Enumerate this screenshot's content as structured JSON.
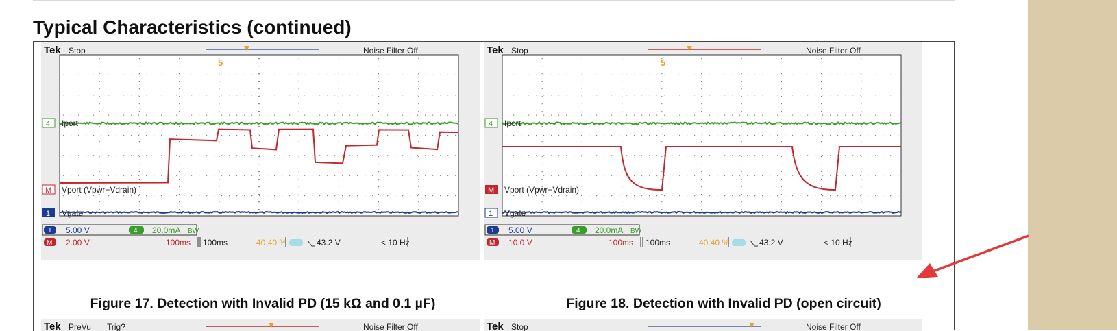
{
  "section_title": "Typical Characteristics (continued)",
  "colors": {
    "ch1": "#1e3b8f",
    "ch4": "#3a9d2c",
    "math": "#c2272d",
    "trigger": "#e8a227",
    "arrow": "#e23a3a",
    "side_panel": "#dccba8"
  },
  "figures": [
    {
      "scope": {
        "brand": "Tek",
        "state": "Stop",
        "filter": "Noise Filter Off",
        "trigger_marker": "5",
        "labels": {
          "ch4": "Iport",
          "math": "Vport (Vpwr−Vdrain)",
          "ch1": "Vgate"
        },
        "markers": {
          "ch4": "4",
          "math": "M",
          "ch1": "1"
        },
        "readout": {
          "ch1_scale": "5.00 V",
          "ch4_scale": "20.0mA",
          "bw": "BW",
          "math_scale": "2.00 V",
          "math_time": "100ms",
          "timebase": "100ms",
          "trig_pos": "40.40 %",
          "trig_level": "43.2 V",
          "freq": "< 10 Hz"
        }
      },
      "caption": "Figure 17. Detection with Invalid PD (15 kΩ and 0.1 µF)"
    },
    {
      "scope": {
        "brand": "Tek",
        "state": "Stop",
        "filter": "Noise Filter Off",
        "trigger_marker": "5",
        "labels": {
          "ch4": "Iport",
          "math": "Vport (Vpwr−Vdrain)",
          "ch1": "Vgate"
        },
        "markers": {
          "ch4": "4",
          "math": "M",
          "ch1": "1"
        },
        "readout": {
          "ch1_scale": "5.00 V",
          "ch4_scale": "20.0mA",
          "bw": "BW",
          "math_scale": "10.0 V",
          "math_time": "100ms",
          "timebase": "100ms",
          "trig_pos": "40.40 %",
          "trig_level": "43.2 V",
          "freq": "< 10 Hz"
        }
      },
      "caption": "Figure 18. Detection with Invalid PD (open circuit)"
    }
  ],
  "next_row": [
    {
      "brand": "Tek",
      "state": "PreVu",
      "extra": "Trig?",
      "filter": "Noise Filter Off"
    },
    {
      "brand": "Tek",
      "state": "Stop",
      "extra": "",
      "filter": "Noise Filter Off"
    }
  ]
}
